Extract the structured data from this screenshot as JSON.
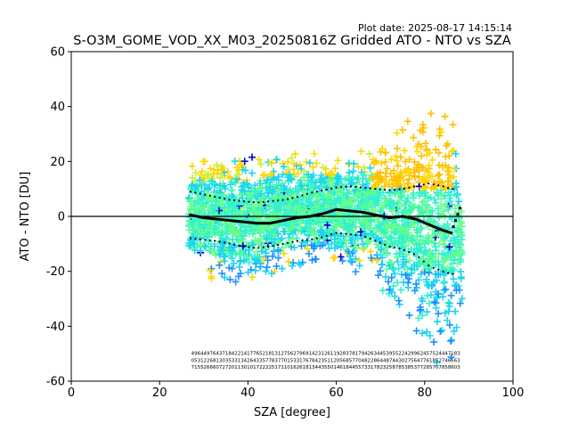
{
  "header": {
    "plot_date": "Plot date: 2025-08-17 14:15:14",
    "title": "S-O3M_GOME_VOD_XX_M03_20250816Z Gridded ATO - NTO vs SZA"
  },
  "chart_data": {
    "type": "scatter",
    "title": "S-O3M_GOME_VOD_XX_M03_20250816Z Gridded ATO - NTO vs SZA",
    "xlabel": "SZA [degree]",
    "ylabel": "ATO - NTO [DU]",
    "xlim": [
      0,
      100
    ],
    "ylim": [
      -60,
      60
    ],
    "xticks": [
      0,
      20,
      40,
      60,
      80,
      100
    ],
    "yticks": [
      -60,
      -40,
      -20,
      0,
      20,
      40,
      60
    ],
    "grid": false,
    "marker": "+",
    "reference_line": {
      "y": 0,
      "color": "#000000"
    },
    "colors": {
      "dark_blue": "#0000cd",
      "blue": "#1e90ff",
      "cyan": "#19d3f3",
      "aqua": "#33f0d0",
      "green": "#66ff88",
      "yellow_green": "#c8f03c",
      "yellow": "#ffd700",
      "orange": "#ffbf00"
    },
    "sza_bin_range": [
      26.5,
      88.5
    ],
    "mean_series": {
      "name": "mean",
      "x": [
        27,
        30,
        33,
        36,
        39,
        42,
        45,
        48,
        51,
        54,
        57,
        60,
        63,
        66,
        69,
        72,
        75,
        78,
        81,
        84,
        86,
        88
      ],
      "y": [
        0.5,
        -0.5,
        -1,
        -1.5,
        -2,
        -2.5,
        -2.5,
        -1.5,
        -0.5,
        0,
        1,
        2.5,
        2,
        1.5,
        0.5,
        -0.5,
        0,
        -1,
        -3,
        -5,
        -6,
        3
      ]
    },
    "std_upper": {
      "name": "mean + std",
      "x": [
        27,
        30,
        33,
        36,
        39,
        42,
        45,
        48,
        51,
        54,
        57,
        60,
        63,
        66,
        69,
        72,
        75,
        78,
        81,
        84,
        86
      ],
      "y": [
        9,
        8,
        7,
        6,
        5.5,
        5,
        5.5,
        6,
        7,
        8.5,
        9.5,
        10.5,
        11,
        10.5,
        10,
        9.5,
        10,
        11,
        12,
        11,
        10
      ]
    },
    "std_lower": {
      "name": "mean - std",
      "x": [
        27,
        30,
        33,
        36,
        39,
        42,
        45,
        48,
        51,
        54,
        57,
        60,
        63,
        66,
        69,
        72,
        75,
        78,
        81,
        84,
        86
      ],
      "y": [
        -8,
        -8.5,
        -9,
        -10,
        -11,
        -11.5,
        -11,
        -10,
        -9,
        -8.5,
        -7.5,
        -6,
        -6.5,
        -7,
        -9,
        -11,
        -12,
        -14,
        -18,
        -20,
        -21
      ]
    },
    "spread": {
      "x": [
        27,
        30,
        33,
        36,
        39,
        42,
        45,
        48,
        51,
        54,
        57,
        60,
        63,
        66,
        69,
        72,
        75,
        78,
        81,
        84,
        86,
        88
      ],
      "upper": [
        20,
        22,
        23,
        23,
        22,
        22,
        23,
        24,
        24,
        24,
        23,
        23,
        24,
        24,
        26,
        29,
        33,
        38,
        40,
        42,
        44,
        20
      ],
      "lower": [
        -20,
        -22,
        -24,
        -26,
        -27,
        -26,
        -22,
        -20,
        -19,
        -19,
        -18,
        -20,
        -21,
        -20,
        -23,
        -33,
        -38,
        -45,
        -52,
        -56,
        -59,
        -40
      ]
    },
    "count_rows_y": [
      -50.5,
      -53,
      -55.5
    ]
  }
}
